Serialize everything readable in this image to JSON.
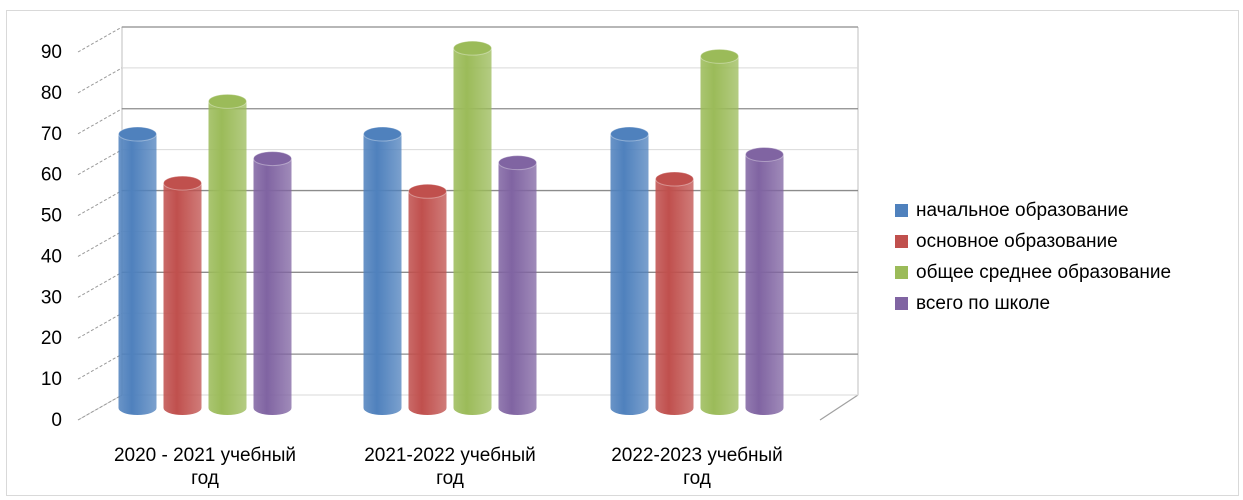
{
  "chart_data": {
    "type": "bar",
    "categories": [
      [
        "2020 - 2021 учебный",
        "год"
      ],
      [
        "2021-2022 учебный",
        "год"
      ],
      [
        "2022-2023 учебный",
        "год"
      ]
    ],
    "series": [
      {
        "name": "начальное образование",
        "values": [
          67,
          67,
          67
        ],
        "color": "#4f81bd"
      },
      {
        "name": "основное образование",
        "values": [
          55,
          53,
          56
        ],
        "color": "#c0504d"
      },
      {
        "name": "общее среднее образование",
        "values": [
          75,
          88,
          86
        ],
        "color": "#9bbb59"
      },
      {
        "name": "всего по школе",
        "values": [
          61,
          60,
          62
        ],
        "color": "#8064a2"
      }
    ],
    "yticks": [
      "0",
      "10",
      "20",
      "30",
      "40",
      "50",
      "60",
      "70",
      "80",
      "90"
    ],
    "ylim": [
      0,
      90
    ],
    "grid": true,
    "legend_position": "right",
    "three_d": true
  }
}
